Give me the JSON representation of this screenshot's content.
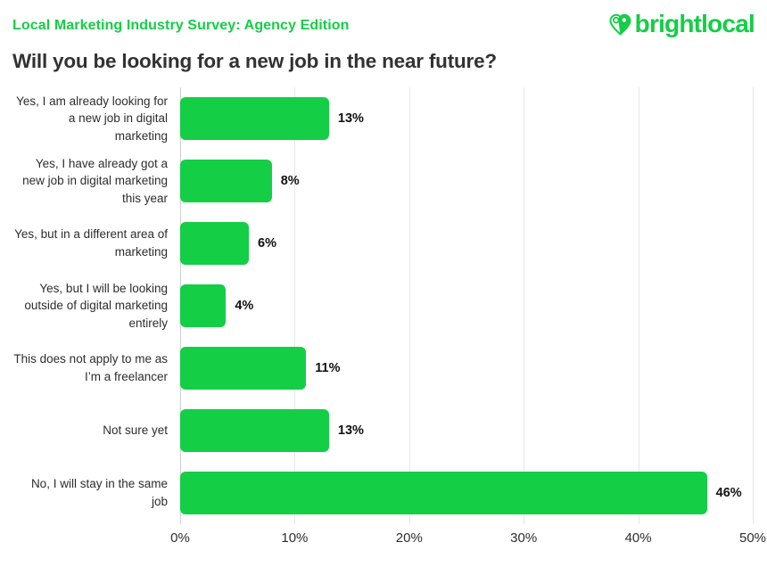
{
  "header": {
    "survey_label": "Local Marketing Industry Survey: Agency Edition",
    "logo_text": "brightlocal"
  },
  "title": "Will you be looking for a new job in the near future?",
  "colors": {
    "accent_green": "#14CE46",
    "title_text": "#323232",
    "gridline": "#e7e7e7",
    "zero_axis_line": "#cfcfcf",
    "value_label": "#111111"
  },
  "chart_data": {
    "type": "bar",
    "orientation": "horizontal",
    "title": "Will you be looking for a new job in the near future?",
    "categories": [
      "Yes, I am already looking for a new job in digital marketing",
      "Yes, I have already got a new job in digital marketing this year",
      "Yes, but in a different area of marketing",
      "Yes, but I will be looking outside of digital marketing entirely",
      "This does not apply to me as I’m a freelancer",
      "Not sure yet",
      "No, I will stay in the same job"
    ],
    "values": [
      13,
      8,
      6,
      4,
      11,
      13,
      46
    ],
    "value_labels": [
      "13%",
      "8%",
      "6%",
      "4%",
      "11%",
      "13%",
      "46%"
    ],
    "xlabel": "",
    "ylabel": "",
    "xlim": [
      0,
      50
    ],
    "x_ticks": [
      "0%",
      "10%",
      "20%",
      "30%",
      "40%",
      "50%"
    ],
    "grid": true,
    "legend": "none"
  }
}
